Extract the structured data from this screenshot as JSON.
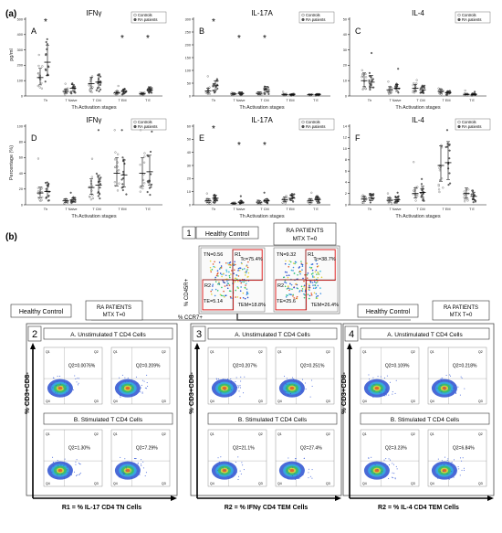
{
  "panel_a": {
    "label": "(a)",
    "legend": [
      "Controls",
      "RA patients"
    ],
    "xlabel": "Th Activation stages",
    "categories": [
      "Th",
      "T Naive",
      "T CM",
      "T EM",
      "T E"
    ],
    "row1_ylabel": "pg/ml",
    "row2_ylabel": "Percentage (%)",
    "charts": [
      {
        "letter": "A",
        "title": "IFNγ",
        "yticks": [
          "0",
          "100",
          "200",
          "300",
          "400",
          "500"
        ],
        "ymax": 500,
        "stars": [
          0,
          3,
          4
        ],
        "topstar": "*",
        "ctrl": [
          120,
          30,
          80,
          20,
          15
        ],
        "ra": [
          220,
          50,
          90,
          30,
          40
        ]
      },
      {
        "letter": "B",
        "title": "IL-17A",
        "yticks": [
          "0",
          "50",
          "100",
          "150",
          "200",
          "250",
          "300"
        ],
        "ymax": 300,
        "stars": [
          0,
          1,
          2
        ],
        "ctrl": [
          20,
          8,
          10,
          5,
          5
        ],
        "ra": [
          40,
          10,
          25,
          5,
          5
        ]
      },
      {
        "letter": "C",
        "title": "IL-4",
        "yticks": [
          "0",
          "10",
          "20",
          "30",
          "40",
          "50"
        ],
        "ymax": 50,
        "stars": [],
        "ctrl": [
          10,
          4,
          5,
          3,
          1
        ],
        "ra": [
          9,
          5,
          4,
          2,
          1
        ]
      },
      {
        "letter": "D",
        "title": "IFNγ",
        "yticks": [
          "0",
          "20",
          "40",
          "60",
          "80",
          "100"
        ],
        "ymax": 100,
        "stars": [],
        "ctrl": [
          15,
          5,
          22,
          40,
          40
        ],
        "ra": [
          17,
          6,
          25,
          38,
          42
        ]
      },
      {
        "letter": "E",
        "title": "IL-17A",
        "yticks": [
          "0",
          "10",
          "20",
          "30",
          "40",
          "50",
          "60"
        ],
        "ymax": 60,
        "stars": [
          0,
          1,
          2
        ],
        "ctrl": [
          3,
          1,
          2,
          4,
          3
        ],
        "ra": [
          5,
          2,
          3,
          5,
          4
        ]
      },
      {
        "letter": "F",
        "title": "IL-4",
        "yticks": [
          "0",
          "2",
          "4",
          "6",
          "8",
          "10",
          "12",
          "14"
        ],
        "ymax": 14,
        "stars": [],
        "ctrl": [
          1,
          0.8,
          2,
          7,
          2
        ],
        "ra": [
          1.2,
          0.9,
          2.2,
          7.5,
          1.5
        ]
      }
    ]
  },
  "panel_b": {
    "label": "(b)",
    "step1_number": "1",
    "healthy_control": "Healthy Control",
    "ra_patients": "RA PATIENTS",
    "mtx": "MTX T=0",
    "axis_y": "% CD45R+",
    "axis_x": "% CCR7+",
    "gates_hc": {
      "R1": "R1",
      "R2": "R2",
      "tnaive": "TN=0.56",
      "tcm": "Tc=75.4%",
      "te": "TE=5.14",
      "tem": "TEM=18.8%"
    },
    "gates_ra": {
      "R1": "R1",
      "R2": "R2",
      "tnaive": "TN=9.32",
      "tcm": "Tc=38.7%",
      "te": "TE=25.6",
      "tem": "TEM=26.4%"
    },
    "sections": [
      {
        "num": "2",
        "unstim": "A. Unstimulated T CD4 Cells",
        "stim": "B. Stimulated T CD4 Cells",
        "vals": [
          "Q2=0.0076%",
          "Q2=0.209%",
          "Q2=1.30%",
          "Q2=7.29%"
        ],
        "footer": "R1 = % IL-17 CD4 TN Cells"
      },
      {
        "num": "3",
        "unstim": "A. Unstimulated T CD4 Cells",
        "stim": "B. Stimulated T CD4 Cells",
        "vals": [
          "Q2=0.207%",
          "Q2=0.251%",
          "Q2=21.1%",
          "Q2=27.4%"
        ],
        "footer": "R2 = % IFNγ CD4 TEM Cells"
      },
      {
        "num": "4",
        "unstim": "A. Unstimulated T CD4 Cells",
        "stim": "B. Stimulated T CD4 Cells",
        "vals": [
          "Q2=0.109%",
          "Q2=0.218%",
          "Q2=3.23%",
          "Q2=6.84%"
        ],
        "footer": "R2 = % IL-4 CD4 TEM Cells"
      }
    ],
    "y_label_cd8": "% CD3+CD8-"
  }
}
